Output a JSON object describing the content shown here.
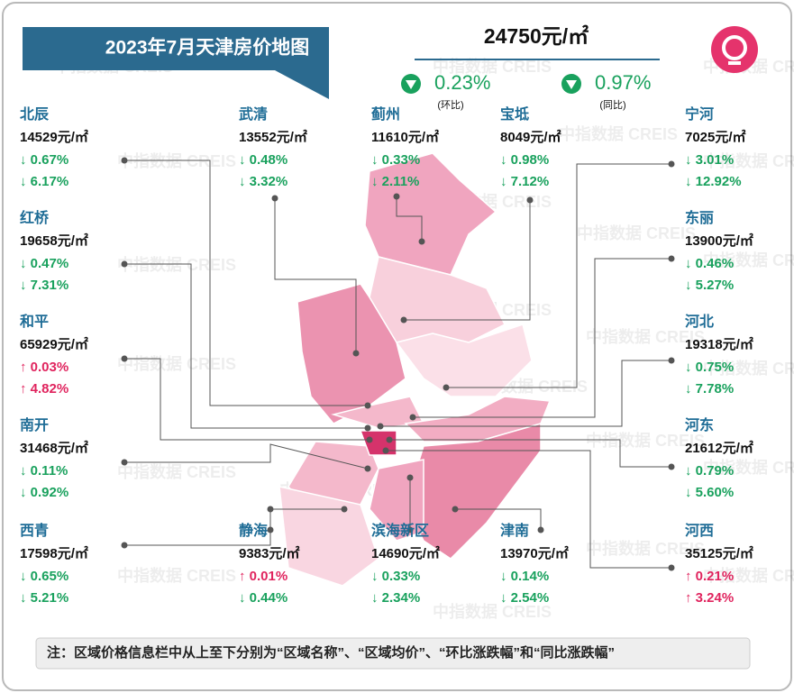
{
  "header": {
    "title": "2023年7月天津房价地图",
    "average_price": "24750元/㎡",
    "mom_change": "0.23%",
    "mom_label": "(环比)",
    "yoy_change": "0.97%",
    "yoy_label": "(同比)"
  },
  "watermark": "中指数据 CREIS",
  "districts": [
    {
      "name": "北辰",
      "price": "14529元/㎡",
      "mom": "↓ 0.67%",
      "yoy": "↓ 6.17%"
    },
    {
      "name": "红桥",
      "price": "19658元/㎡",
      "mom": "↓ 0.47%",
      "yoy": "↓ 7.31%"
    },
    {
      "name": "和平",
      "price": "65929元/㎡",
      "mom": "↑ 0.03%",
      "yoy": "↑ 4.82%"
    },
    {
      "name": "南开",
      "price": "31468元/㎡",
      "mom": "↓ 0.11%",
      "yoy": "↓ 0.92%"
    },
    {
      "name": "西青",
      "price": "17598元/㎡",
      "mom": "↓ 0.65%",
      "yoy": "↓ 5.21%"
    },
    {
      "name": "武清",
      "price": "13552元/㎡",
      "mom": "↓ 0.48%",
      "yoy": "↓ 3.32%"
    },
    {
      "name": "静海",
      "price": "9383元/㎡",
      "mom": "↑ 0.01%",
      "yoy": "↓ 0.44%"
    },
    {
      "name": "蓟州",
      "price": "11610元/㎡",
      "mom": "↓ 0.33%",
      "yoy": "↓ 2.11%"
    },
    {
      "name": "滨海新区",
      "price": "14690元/㎡",
      "mom": "↓ 0.33%",
      "yoy": "↓ 2.34%"
    },
    {
      "name": "宝坻",
      "price": "8049元/㎡",
      "mom": "↓ 0.98%",
      "yoy": "↓ 7.12%"
    },
    {
      "name": "津南",
      "price": "13970元/㎡",
      "mom": "↓ 0.14%",
      "yoy": "↓ 2.54%"
    },
    {
      "name": "宁河",
      "price": "7025元/㎡",
      "mom": "↓ 3.01%",
      "yoy": "↓ 12.92%"
    },
    {
      "name": "东丽",
      "price": "13900元/㎡",
      "mom": "↓ 0.46%",
      "yoy": "↓ 5.27%"
    },
    {
      "name": "河北",
      "price": "19318元/㎡",
      "mom": "↓ 0.75%",
      "yoy": "↓ 7.78%"
    },
    {
      "name": "河东",
      "price": "21612元/㎡",
      "mom": "↓ 0.79%",
      "yoy": "↓ 5.60%"
    },
    {
      "name": "河西",
      "price": "35125元/㎡",
      "mom": "↑ 0.21%",
      "yoy": "↑ 3.24%"
    }
  ],
  "note": "注：区域价格信息栏中从上至下分别为“区域名称”、“区域均价”、“环比涨跌幅”和“同比涨跌幅”"
}
